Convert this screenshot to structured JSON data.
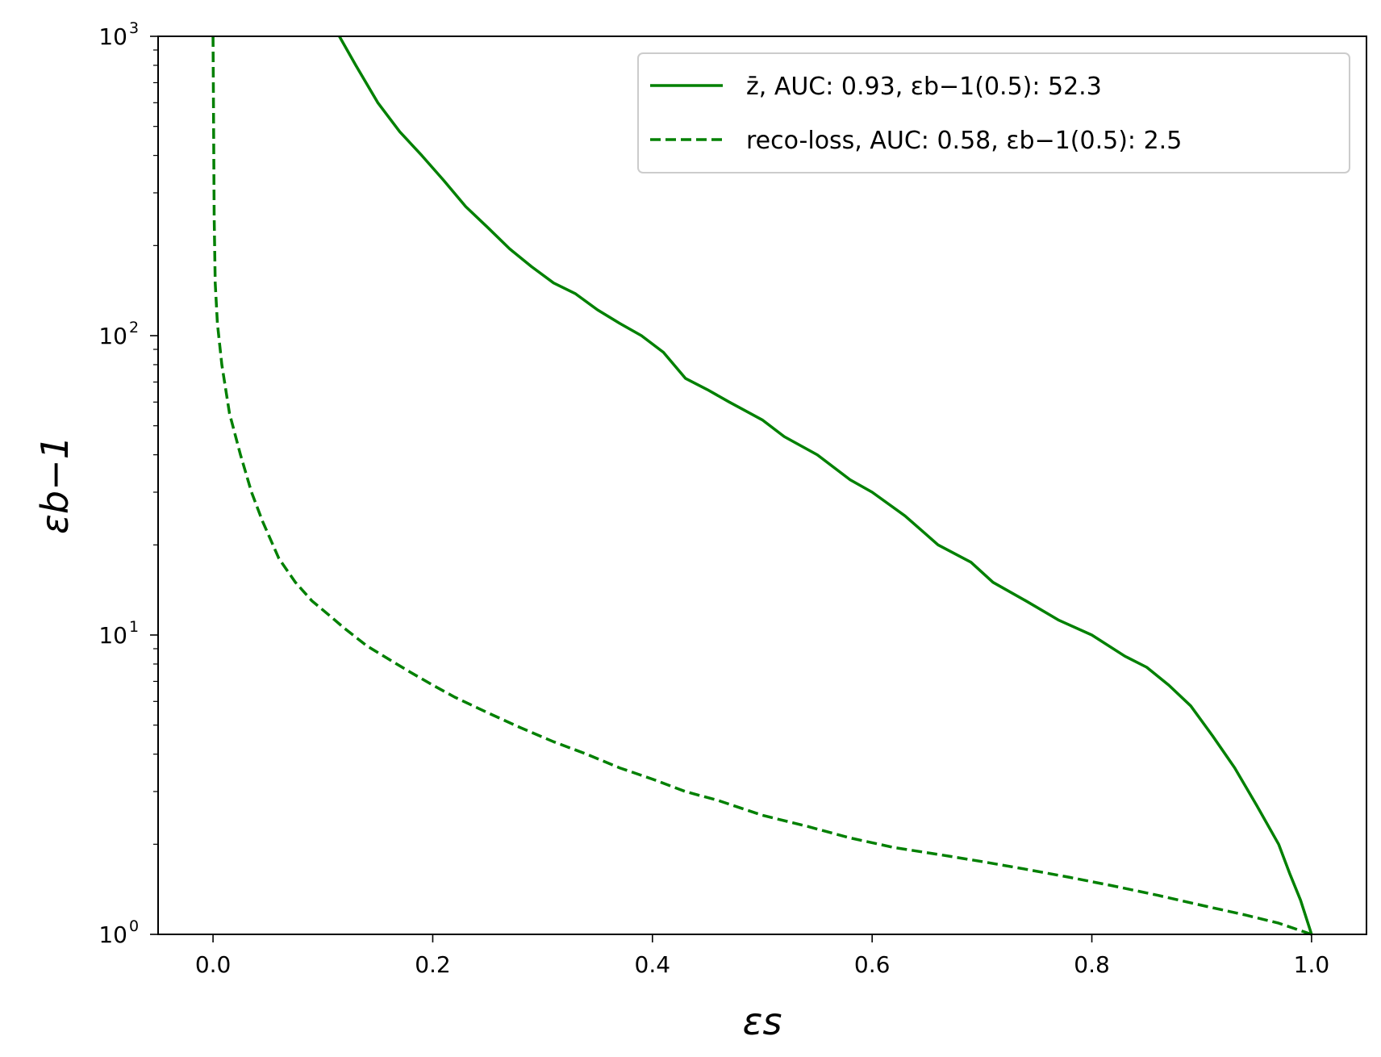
{
  "chart_data": {
    "type": "line",
    "xlabel": "εs",
    "ylabel": "εb−1",
    "xlim": [
      -0.05,
      1.05
    ],
    "ylim": [
      1,
      1000
    ],
    "yscale": "log",
    "xticks": [
      {
        "value": 0.0,
        "label": "0.0"
      },
      {
        "value": 0.2,
        "label": "0.2"
      },
      {
        "value": 0.4,
        "label": "0.4"
      },
      {
        "value": 0.6,
        "label": "0.6"
      },
      {
        "value": 0.8,
        "label": "0.8"
      },
      {
        "value": 1.0,
        "label": "1.0"
      }
    ],
    "yticks": [
      {
        "value": 1,
        "base": "10",
        "exp": "0"
      },
      {
        "value": 10,
        "base": "10",
        "exp": "1"
      },
      {
        "value": 100,
        "base": "10",
        "exp": "2"
      },
      {
        "value": 1000,
        "base": "10",
        "exp": "3"
      }
    ],
    "grid": false,
    "legend_position": "top-right",
    "colors": {
      "series": "#008000",
      "axis": "#000000",
      "legend_border": "#cccccc"
    },
    "series": [
      {
        "name": "z̄, AUC: 0.93, εb−1(0.5): 52.3",
        "style": "solid",
        "x": [
          0.115,
          0.13,
          0.15,
          0.17,
          0.19,
          0.21,
          0.23,
          0.25,
          0.27,
          0.29,
          0.31,
          0.33,
          0.35,
          0.37,
          0.39,
          0.41,
          0.43,
          0.45,
          0.47,
          0.5,
          0.52,
          0.55,
          0.58,
          0.6,
          0.63,
          0.66,
          0.69,
          0.71,
          0.74,
          0.77,
          0.8,
          0.83,
          0.85,
          0.87,
          0.89,
          0.91,
          0.93,
          0.95,
          0.97,
          0.98,
          0.99,
          1.0
        ],
        "y": [
          1000,
          800,
          600,
          480,
          400,
          330,
          270,
          230,
          195,
          170,
          150,
          138,
          122,
          110,
          100,
          88,
          72,
          66,
          60,
          52.3,
          46,
          40,
          33,
          30,
          25,
          20,
          17.5,
          15,
          13,
          11.2,
          10,
          8.5,
          7.8,
          6.8,
          5.8,
          4.6,
          3.6,
          2.7,
          2.0,
          1.6,
          1.3,
          1.0
        ]
      },
      {
        "name": "reco-loss, AUC: 0.58, εb−1(0.5): 2.5",
        "style": "dashed",
        "x": [
          0.0,
          0.0005,
          0.001,
          0.002,
          0.004,
          0.008,
          0.015,
          0.025,
          0.035,
          0.045,
          0.06,
          0.075,
          0.09,
          0.105,
          0.12,
          0.14,
          0.16,
          0.18,
          0.2,
          0.22,
          0.25,
          0.28,
          0.31,
          0.34,
          0.37,
          0.4,
          0.43,
          0.46,
          0.5,
          0.54,
          0.58,
          0.62,
          0.66,
          0.7,
          0.74,
          0.78,
          0.82,
          0.86,
          0.9,
          0.94,
          0.97,
          1.0
        ],
        "y": [
          1000,
          500,
          250,
          150,
          110,
          80,
          55,
          40,
          30,
          24,
          18,
          15,
          13,
          11.7,
          10.5,
          9.2,
          8.3,
          7.5,
          6.8,
          6.2,
          5.5,
          4.9,
          4.4,
          4.0,
          3.6,
          3.3,
          3.0,
          2.8,
          2.5,
          2.3,
          2.1,
          1.95,
          1.85,
          1.75,
          1.65,
          1.55,
          1.45,
          1.35,
          1.25,
          1.16,
          1.09,
          1.0
        ]
      }
    ]
  }
}
